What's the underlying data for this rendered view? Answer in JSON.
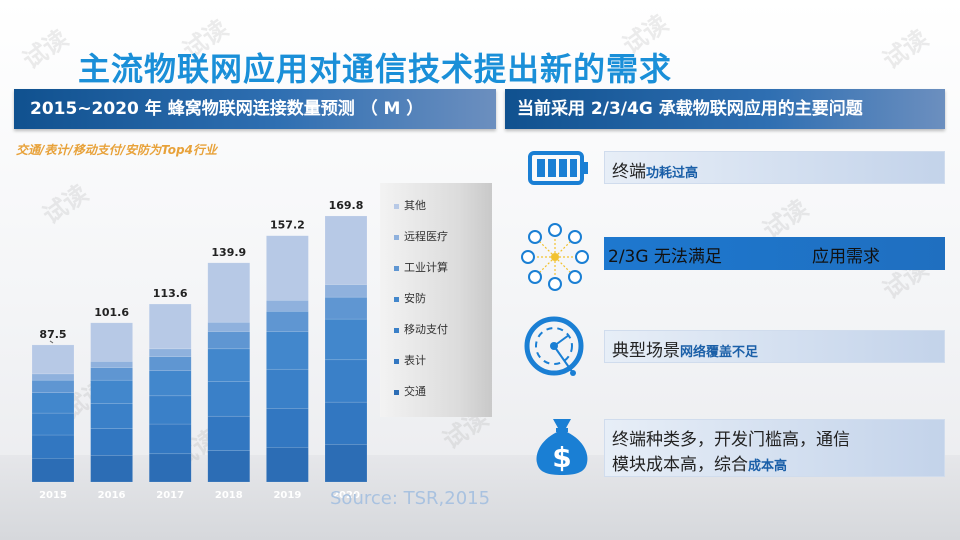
{
  "title": "主流物联网应用对通信技术提出新的需求",
  "left_header": "2015~2020 年 蜂窝物联网连接数量预测 （ M ）",
  "right_header": "当前采用 2/3/4G 承载物联网应用的主要问题",
  "subtitle": "交通/表计/移动支付/安防为Top4行业",
  "source": "Source: TSR,2015",
  "watermark": "试读",
  "colors": {
    "title": "#1a8fd8",
    "accent_orange": "#e8a23a",
    "bar_blue": "#2f74c0",
    "bar_light": "#b7c9e6"
  },
  "problems": [
    {
      "icon": "battery-icon",
      "text": "终端",
      "emphasis": "功耗过高"
    },
    {
      "icon": "network-devices-icon",
      "text": "2/3G 无法满足",
      "text2": "应用需求"
    },
    {
      "icon": "radar-signal-icon",
      "text": "典型场景",
      "emphasis": "网络覆盖不足"
    },
    {
      "icon": "dollar-bag-icon",
      "line1": "终端种类多，开发门槛高，通信",
      "line2": "模块成本高，综合",
      "emphasis": "成本高"
    }
  ],
  "chart_data": {
    "type": "bar",
    "stacked": true,
    "categories": [
      "2015",
      "2016",
      "2017",
      "2018",
      "2019",
      "2020"
    ],
    "totals": [
      87.5,
      101.6,
      113.6,
      139.9,
      157.2,
      169.8
    ],
    "series": [
      {
        "name": "交通",
        "values": [
          15,
          17,
          18,
          20,
          22,
          24
        ]
      },
      {
        "name": "表计",
        "values": [
          15,
          17,
          19,
          22,
          25,
          27
        ]
      },
      {
        "name": "移动支付",
        "values": [
          14,
          16,
          18,
          22,
          25,
          27
        ]
      },
      {
        "name": "安防",
        "values": [
          13,
          15,
          16,
          21,
          24,
          26
        ]
      },
      {
        "name": "工业计算",
        "values": [
          8,
          8,
          9,
          11,
          13,
          14
        ]
      },
      {
        "name": "远程医疗",
        "values": [
          4,
          4,
          5,
          6,
          7,
          8
        ]
      },
      {
        "name": "其他",
        "values": [
          18.5,
          24.6,
          28.6,
          37.9,
          41.2,
          43.8
        ]
      }
    ],
    "legend_order": [
      "其他",
      "远程医疗",
      "工业计算",
      "安防",
      "移动支付",
      "表计",
      "交通"
    ],
    "legend_position": "right",
    "ylim": [
      0,
      180
    ],
    "grid": false
  }
}
